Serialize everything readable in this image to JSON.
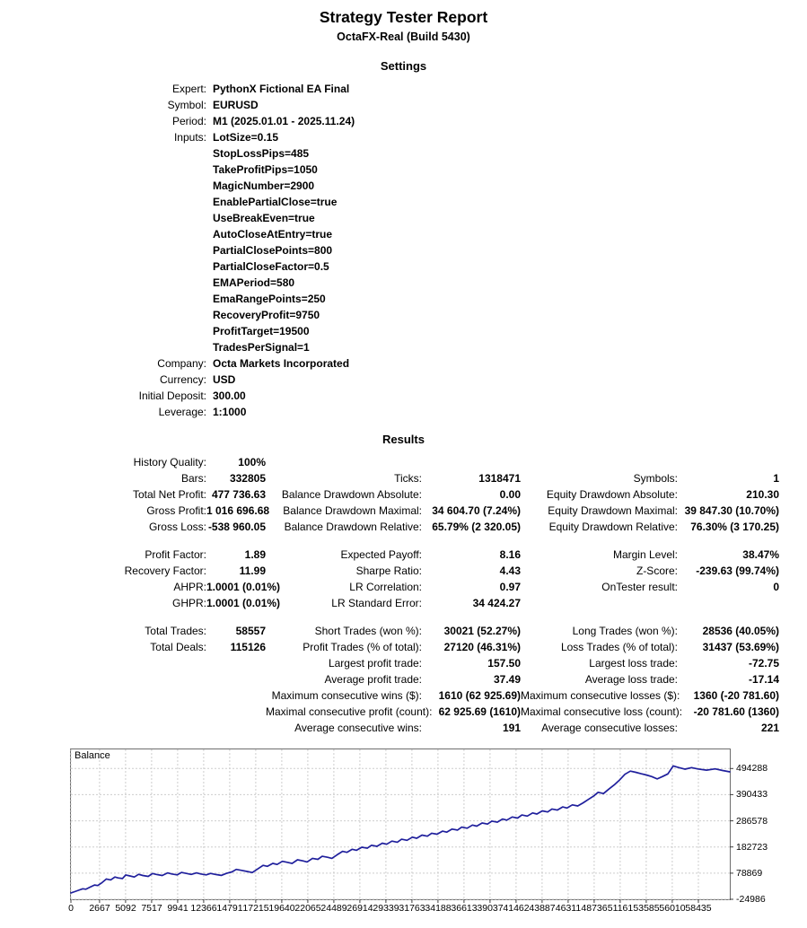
{
  "report": {
    "title": "Strategy Tester Report",
    "subtitle": "OctaFX-Real (Build 5430)",
    "settings_heading": "Settings",
    "results_heading": "Results"
  },
  "settings": {
    "rows": [
      {
        "label": "Expert:",
        "value": "PythonX Fictional EA Final"
      },
      {
        "label": "Symbol:",
        "value": "EURUSD"
      },
      {
        "label": "Period:",
        "value": "M1 (2025.01.01 - 2025.11.24)"
      },
      {
        "label": "Inputs:",
        "value": "LotSize=0.15"
      },
      {
        "label": "",
        "value": "StopLossPips=485"
      },
      {
        "label": "",
        "value": "TakeProfitPips=1050"
      },
      {
        "label": "",
        "value": "MagicNumber=2900"
      },
      {
        "label": "",
        "value": "EnablePartialClose=true"
      },
      {
        "label": "",
        "value": "UseBreakEven=true"
      },
      {
        "label": "",
        "value": "AutoCloseAtEntry=true"
      },
      {
        "label": "",
        "value": "PartialClosePoints=800"
      },
      {
        "label": "",
        "value": "PartialCloseFactor=0.5"
      },
      {
        "label": "",
        "value": "EMAPeriod=580"
      },
      {
        "label": "",
        "value": "EmaRangePoints=250"
      },
      {
        "label": "",
        "value": "RecoveryProfit=9750"
      },
      {
        "label": "",
        "value": "ProfitTarget=19500"
      },
      {
        "label": "",
        "value": "TradesPerSignal=1"
      },
      {
        "label": "Company:",
        "value": "Octa Markets Incorporated"
      },
      {
        "label": "Currency:",
        "value": "USD"
      },
      {
        "label": "Initial Deposit:",
        "value": "300.00"
      },
      {
        "label": "Leverage:",
        "value": "1:1000"
      }
    ]
  },
  "results": {
    "rows": [
      [
        "History Quality:",
        "100%",
        "",
        "",
        "",
        ""
      ],
      [
        "Bars:",
        "332805",
        "Ticks:",
        "1318471",
        "Symbols:",
        "1"
      ],
      [
        "Total Net Profit:",
        "477 736.63",
        "Balance Drawdown Absolute:",
        "0.00",
        "Equity Drawdown Absolute:",
        "210.30"
      ],
      [
        "Gross Profit:",
        "1 016 696.68",
        "Balance Drawdown Maximal:",
        "34 604.70 (7.24%)",
        "Equity Drawdown Maximal:",
        "39 847.30 (10.70%)"
      ],
      [
        "Gross Loss:",
        "-538 960.05",
        "Balance Drawdown Relative:",
        "65.79% (2 320.05)",
        "Equity Drawdown Relative:",
        "76.30% (3 170.25)"
      ],
      [],
      [
        "Profit Factor:",
        "1.89",
        "Expected Payoff:",
        "8.16",
        "Margin Level:",
        "38.47%"
      ],
      [
        "Recovery Factor:",
        "11.99",
        "Sharpe Ratio:",
        "4.43",
        "Z-Score:",
        "-239.63 (99.74%)"
      ],
      [
        "AHPR:",
        "1.0001 (0.01%)",
        "LR Correlation:",
        "0.97",
        "OnTester result:",
        "0"
      ],
      [
        "GHPR:",
        "1.0001 (0.01%)",
        "LR Standard Error:",
        "34 424.27",
        "",
        ""
      ],
      [],
      [
        "Total Trades:",
        "58557",
        "Short Trades (won %):",
        "30021 (52.27%)",
        "Long Trades (won %):",
        "28536 (40.05%)"
      ],
      [
        "Total Deals:",
        "115126",
        "Profit Trades (% of total):",
        "27120 (46.31%)",
        "Loss Trades (% of total):",
        "31437 (53.69%)"
      ],
      [
        "",
        "",
        "Largest profit trade:",
        "157.50",
        "Largest loss trade:",
        "-72.75"
      ],
      [
        "",
        "",
        "Average profit trade:",
        "37.49",
        "Average loss trade:",
        "-17.14"
      ],
      [
        "",
        "",
        "Maximum consecutive wins ($):",
        "1610 (62 925.69)",
        "Maximum consecutive losses ($):",
        "1360 (-20 781.60)"
      ],
      [
        "",
        "",
        "Maximal consecutive profit (count):",
        "62 925.69 (1610)",
        "Maximal consecutive loss (count):",
        "-20 781.60 (1360)"
      ],
      [
        "",
        "",
        "Average consecutive wins:",
        "191",
        "Average consecutive losses:",
        "221"
      ]
    ]
  },
  "chart_data": {
    "type": "line",
    "title": "Balance",
    "xlabel": "",
    "ylabel": "",
    "grid": "dashed",
    "xlim": [
      0,
      61365
    ],
    "ylim": [
      -24986,
      570000
    ],
    "x_ticks": [
      0,
      2667,
      5092,
      7517,
      9941,
      12366,
      14791,
      17215,
      19640,
      22065,
      24489,
      26914,
      29339,
      31763,
      34188,
      36613,
      39037,
      41462,
      43887,
      46311,
      48736,
      51161,
      53585,
      56010,
      58435
    ],
    "y_ticks": [
      494288,
      390433,
      286578,
      182723,
      78869,
      -24986
    ],
    "series": [
      {
        "name": "Balance",
        "color": "#1f1f9c",
        "points": [
          [
            0,
            300
          ],
          [
            350,
            5200
          ],
          [
            700,
            10500
          ],
          [
            1100,
            16800
          ],
          [
            1400,
            14900
          ],
          [
            1800,
            23500
          ],
          [
            2200,
            31800
          ],
          [
            2500,
            29400
          ],
          [
            2900,
            41200
          ],
          [
            3300,
            55600
          ],
          [
            3700,
            51800
          ],
          [
            4100,
            63400
          ],
          [
            4400,
            59700
          ],
          [
            4800,
            57300
          ],
          [
            5100,
            71600
          ],
          [
            5500,
            67800
          ],
          [
            5900,
            63500
          ],
          [
            6300,
            73900
          ],
          [
            6700,
            69600
          ],
          [
            7200,
            65800
          ],
          [
            7600,
            77400
          ],
          [
            8000,
            73200
          ],
          [
            8500,
            69500
          ],
          [
            9000,
            79800
          ],
          [
            9400,
            75600
          ],
          [
            9900,
            71900
          ],
          [
            10300,
            81600
          ],
          [
            10800,
            77400
          ],
          [
            11200,
            73800
          ],
          [
            11700,
            79600
          ],
          [
            12100,
            75400
          ],
          [
            12600,
            71800
          ],
          [
            13000,
            77600
          ],
          [
            13500,
            73400
          ],
          [
            14000,
            69800
          ],
          [
            14500,
            77900
          ],
          [
            15000,
            83600
          ],
          [
            15400,
            93800
          ],
          [
            15900,
            89600
          ],
          [
            16400,
            85400
          ],
          [
            16900,
            81200
          ],
          [
            17400,
            95600
          ],
          [
            17900,
            109800
          ],
          [
            18300,
            105600
          ],
          [
            18800,
            117400
          ],
          [
            19200,
            113200
          ],
          [
            19700,
            125600
          ],
          [
            20200,
            121400
          ],
          [
            20600,
            117200
          ],
          [
            21100,
            131600
          ],
          [
            21600,
            127400
          ],
          [
            22000,
            123200
          ],
          [
            22500,
            137600
          ],
          [
            23000,
            133400
          ],
          [
            23400,
            145800
          ],
          [
            23900,
            141600
          ],
          [
            24300,
            137400
          ],
          [
            24800,
            151800
          ],
          [
            25300,
            165400
          ],
          [
            25700,
            161200
          ],
          [
            26200,
            173600
          ],
          [
            26600,
            169400
          ],
          [
            27100,
            181800
          ],
          [
            27600,
            177600
          ],
          [
            28000,
            189400
          ],
          [
            28500,
            185200
          ],
          [
            29000,
            197600
          ],
          [
            29400,
            193400
          ],
          [
            29900,
            205800
          ],
          [
            30400,
            201600
          ],
          [
            30800,
            213400
          ],
          [
            31300,
            209200
          ],
          [
            31800,
            221600
          ],
          [
            32200,
            217400
          ],
          [
            32700,
            229800
          ],
          [
            33200,
            225600
          ],
          [
            33600,
            237400
          ],
          [
            34100,
            233200
          ],
          [
            34600,
            245600
          ],
          [
            35000,
            241400
          ],
          [
            35500,
            253800
          ],
          [
            36000,
            249600
          ],
          [
            36400,
            261400
          ],
          [
            36900,
            257200
          ],
          [
            37400,
            269600
          ],
          [
            37800,
            265400
          ],
          [
            38300,
            277800
          ],
          [
            38800,
            273600
          ],
          [
            39200,
            285400
          ],
          [
            39700,
            281200
          ],
          [
            40200,
            293600
          ],
          [
            40600,
            289400
          ],
          [
            41100,
            301800
          ],
          [
            41600,
            297600
          ],
          [
            42000,
            309400
          ],
          [
            42500,
            305200
          ],
          [
            43000,
            317600
          ],
          [
            43400,
            313400
          ],
          [
            43900,
            325800
          ],
          [
            44400,
            321600
          ],
          [
            44800,
            333400
          ],
          [
            45300,
            329200
          ],
          [
            45800,
            341600
          ],
          [
            46200,
            337400
          ],
          [
            46700,
            349800
          ],
          [
            47200,
            345600
          ],
          [
            47700,
            357800
          ],
          [
            48200,
            371400
          ],
          [
            48700,
            385600
          ],
          [
            49100,
            399800
          ],
          [
            49600,
            394600
          ],
          [
            50100,
            412400
          ],
          [
            50600,
            428800
          ],
          [
            51100,
            448600
          ],
          [
            51600,
            471400
          ],
          [
            52100,
            483900
          ],
          [
            52600,
            479200
          ],
          [
            53100,
            473600
          ],
          [
            53600,
            468400
          ],
          [
            54100,
            462200
          ],
          [
            54600,
            452800
          ],
          [
            55100,
            462400
          ],
          [
            55600,
            472800
          ],
          [
            56100,
            504500
          ],
          [
            56600,
            498200
          ],
          [
            57200,
            491600
          ],
          [
            57800,
            497800
          ],
          [
            58400,
            492400
          ],
          [
            59200,
            487600
          ],
          [
            60000,
            492800
          ],
          [
            60700,
            486200
          ],
          [
            61365,
            480800
          ]
        ]
      }
    ]
  }
}
